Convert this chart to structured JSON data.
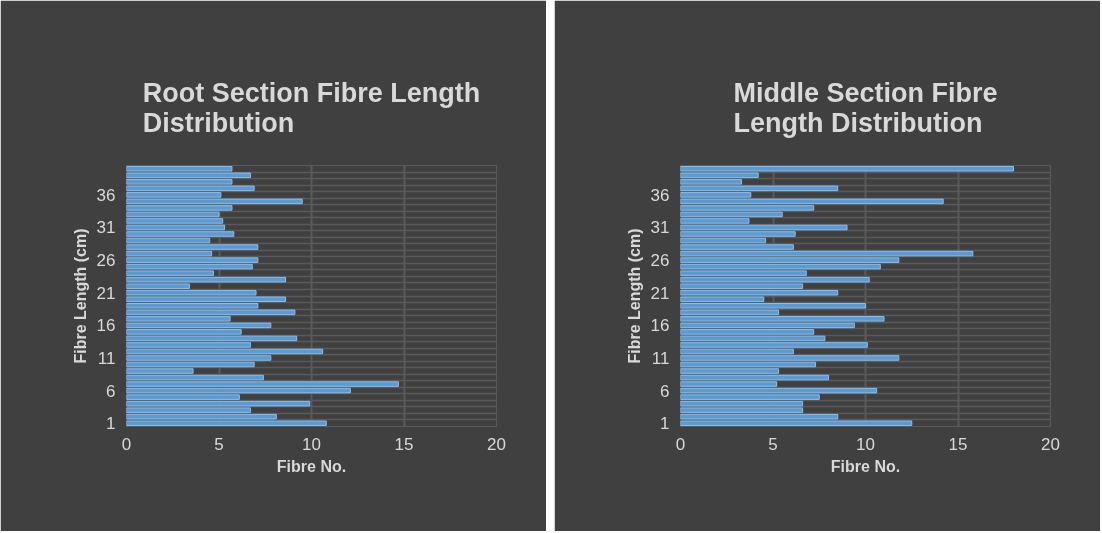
{
  "chart_data": [
    {
      "type": "bar",
      "orientation": "horizontal",
      "title": "Root Section Fibre Length Distribution",
      "xlabel": "Fibre No.",
      "ylabel": "Fibre Length (cm)",
      "color": "#5b9bd5",
      "xlim": [
        0,
        20
      ],
      "xticks": [
        0,
        5,
        10,
        15,
        20
      ],
      "grid": true,
      "categories": [
        null,
        null,
        null,
        null,
        "36",
        null,
        null,
        null,
        null,
        "31",
        null,
        null,
        null,
        null,
        "26",
        null,
        null,
        null,
        null,
        "21",
        null,
        null,
        null,
        null,
        "16",
        null,
        null,
        null,
        null,
        "11",
        null,
        null,
        null,
        null,
        "6",
        null,
        null,
        null,
        null,
        "1"
      ],
      "values": [
        5.7,
        6.7,
        5.7,
        6.9,
        5.1,
        9.5,
        5.7,
        5.0,
        5.2,
        5.3,
        5.8,
        4.5,
        7.1,
        4.6,
        7.1,
        6.8,
        4.7,
        8.6,
        3.4,
        7.0,
        8.6,
        7.1,
        9.1,
        5.6,
        7.8,
        6.2,
        9.2,
        6.7,
        10.6,
        7.8,
        6.9,
        3.6,
        7.4,
        14.7,
        12.1,
        6.1,
        9.9,
        6.7,
        8.1,
        10.8
      ]
    },
    {
      "type": "bar",
      "orientation": "horizontal",
      "title": "Middle Section Fibre Length Distribution",
      "xlabel": "Fibre No.",
      "ylabel": "Fibre Length (cm)",
      "color": "#5b9bd5",
      "xlim": [
        0,
        20
      ],
      "xticks": [
        0,
        5,
        10,
        15,
        20
      ],
      "grid": true,
      "categories": [
        null,
        null,
        null,
        null,
        "36",
        null,
        null,
        null,
        null,
        "31",
        null,
        null,
        null,
        null,
        "26",
        null,
        null,
        null,
        null,
        "21",
        null,
        null,
        null,
        null,
        "16",
        null,
        null,
        null,
        null,
        "11",
        null,
        null,
        null,
        null,
        "6",
        null,
        null,
        null,
        null,
        "1"
      ],
      "values": [
        18.0,
        4.2,
        3.3,
        8.5,
        3.8,
        14.2,
        7.2,
        5.5,
        3.7,
        9.0,
        6.2,
        4.6,
        6.1,
        15.8,
        11.8,
        10.8,
        6.8,
        10.2,
        6.6,
        8.5,
        4.5,
        10.0,
        5.3,
        11.0,
        9.4,
        7.2,
        7.8,
        10.1,
        6.1,
        11.8,
        7.3,
        5.3,
        8.0,
        5.2,
        10.6,
        7.5,
        6.6,
        6.6,
        8.5,
        12.5
      ]
    }
  ]
}
